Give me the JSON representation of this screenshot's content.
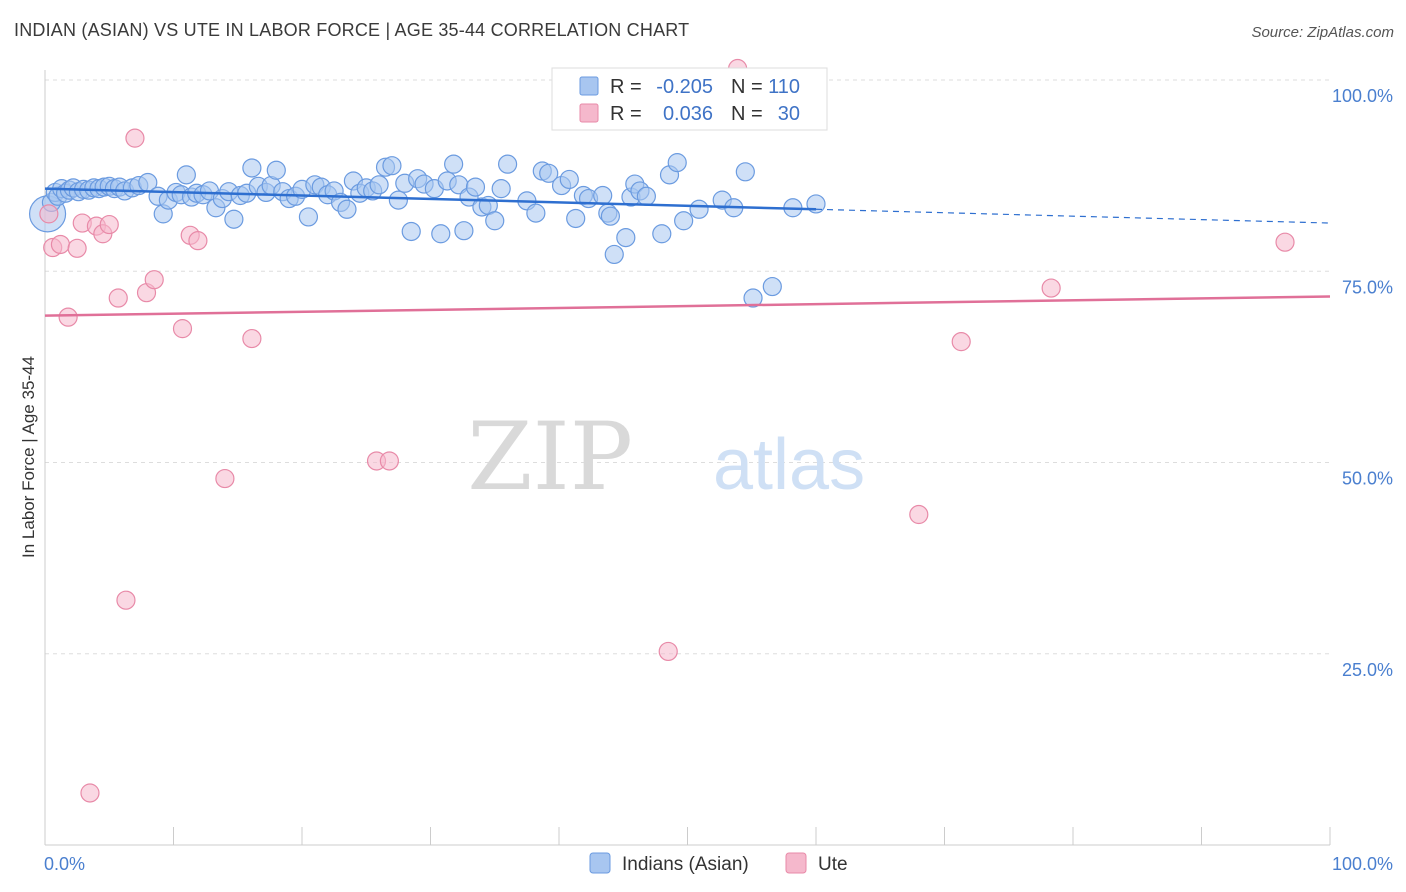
{
  "header": {
    "title": "INDIAN (ASIAN) VS UTE IN LABOR FORCE | AGE 35-44 CORRELATION CHART",
    "source": "Source: ZipAtlas.com"
  },
  "colors": {
    "blue_fill": "#a8c6f0",
    "blue_stroke": "#6b9be0",
    "blue_line": "#2e6fd0",
    "pink_fill": "#f5b8cc",
    "pink_stroke": "#e88aa8",
    "pink_line": "#e07098",
    "grid": "#dddddd",
    "tick_text": "#4a7fcf"
  },
  "chart_data": {
    "type": "scatter",
    "title": "INDIAN (ASIAN) VS UTE IN LABOR FORCE | AGE 35-44 CORRELATION CHART",
    "xlabel": "",
    "ylabel": "In Labor Force | Age 35-44",
    "xlim": [
      0,
      100
    ],
    "ylim": [
      0,
      102
    ],
    "x_tick_labels": [
      "0.0%",
      "100.0%"
    ],
    "y_ticks": [
      25,
      50,
      75,
      100
    ],
    "y_tick_labels": [
      "25.0%",
      "50.0%",
      "75.0%",
      "100.0%"
    ],
    "watermark": {
      "part1": "ZIP",
      "part2": "atlas"
    },
    "legend": [
      {
        "r_label": "R =",
        "r_value": "-0.205",
        "n_label": "N =",
        "n_value": "110"
      },
      {
        "r_label": "R =",
        "r_value": "0.036",
        "n_label": "N =",
        "n_value": "30"
      }
    ],
    "series": [
      {
        "name": "Indians (Asian)",
        "color": "#a8c6f0",
        "trend": {
          "x0": 0,
          "y0": 85.8,
          "x1": 60,
          "y1": 83.1,
          "dash_x1": 100,
          "dash_y1": 81.3
        },
        "points": [
          [
            0.2,
            82.5
          ],
          [
            0.5,
            84.0
          ],
          [
            0.8,
            85.3
          ],
          [
            1.0,
            84.8
          ],
          [
            1.3,
            85.8
          ],
          [
            1.6,
            85.2
          ],
          [
            1.9,
            85.6
          ],
          [
            2.2,
            85.9
          ],
          [
            2.6,
            85.4
          ],
          [
            3.0,
            85.7
          ],
          [
            3.4,
            85.6
          ],
          [
            3.8,
            85.9
          ],
          [
            4.2,
            85.8
          ],
          [
            4.6,
            86.0
          ],
          [
            5.0,
            86.1
          ],
          [
            5.4,
            85.8
          ],
          [
            5.8,
            86.0
          ],
          [
            6.2,
            85.5
          ],
          [
            6.8,
            85.9
          ],
          [
            7.3,
            86.2
          ],
          [
            8.0,
            86.6
          ],
          [
            8.8,
            84.8
          ],
          [
            9.2,
            82.5
          ],
          [
            9.6,
            84.3
          ],
          [
            10.2,
            85.3
          ],
          [
            10.6,
            85.0
          ],
          [
            11.0,
            87.6
          ],
          [
            11.4,
            84.7
          ],
          [
            11.8,
            85.2
          ],
          [
            12.3,
            85.0
          ],
          [
            12.8,
            85.5
          ],
          [
            13.3,
            83.3
          ],
          [
            13.8,
            84.5
          ],
          [
            14.3,
            85.4
          ],
          [
            14.7,
            81.8
          ],
          [
            15.2,
            84.9
          ],
          [
            15.7,
            85.2
          ],
          [
            16.1,
            88.5
          ],
          [
            16.6,
            86.1
          ],
          [
            17.2,
            85.3
          ],
          [
            17.6,
            86.2
          ],
          [
            18.0,
            88.2
          ],
          [
            18.5,
            85.4
          ],
          [
            19.0,
            84.5
          ],
          [
            19.5,
            84.8
          ],
          [
            20.0,
            85.7
          ],
          [
            20.5,
            82.1
          ],
          [
            21.0,
            86.3
          ],
          [
            21.5,
            86.0
          ],
          [
            22.0,
            85.0
          ],
          [
            22.5,
            85.5
          ],
          [
            23.0,
            84.0
          ],
          [
            23.5,
            83.1
          ],
          [
            24.0,
            86.8
          ],
          [
            24.5,
            85.2
          ],
          [
            25.0,
            85.9
          ],
          [
            25.5,
            85.5
          ],
          [
            26.0,
            86.3
          ],
          [
            26.5,
            88.6
          ],
          [
            27.0,
            88.8
          ],
          [
            27.5,
            84.3
          ],
          [
            28.0,
            86.5
          ],
          [
            28.5,
            80.2
          ],
          [
            29.0,
            87.1
          ],
          [
            29.5,
            86.4
          ],
          [
            30.3,
            85.8
          ],
          [
            30.8,
            79.9
          ],
          [
            31.3,
            86.8
          ],
          [
            31.8,
            89.0
          ],
          [
            32.2,
            86.3
          ],
          [
            32.6,
            80.3
          ],
          [
            33.0,
            84.7
          ],
          [
            33.5,
            86.0
          ],
          [
            34.0,
            83.4
          ],
          [
            34.5,
            83.6
          ],
          [
            35.0,
            81.6
          ],
          [
            35.5,
            85.8
          ],
          [
            36.0,
            89.0
          ],
          [
            37.5,
            84.2
          ],
          [
            38.2,
            82.6
          ],
          [
            38.7,
            88.1
          ],
          [
            39.2,
            87.8
          ],
          [
            40.2,
            86.2
          ],
          [
            40.8,
            87.0
          ],
          [
            41.3,
            81.9
          ],
          [
            41.9,
            84.9
          ],
          [
            42.3,
            84.5
          ],
          [
            43.4,
            84.9
          ],
          [
            43.8,
            82.6
          ],
          [
            44.0,
            82.2
          ],
          [
            44.3,
            77.2
          ],
          [
            45.2,
            79.4
          ],
          [
            45.6,
            84.7
          ],
          [
            45.9,
            86.4
          ],
          [
            46.3,
            85.5
          ],
          [
            46.8,
            84.8
          ],
          [
            48.0,
            79.9
          ],
          [
            48.6,
            87.6
          ],
          [
            49.2,
            89.2
          ],
          [
            49.7,
            81.6
          ],
          [
            50.9,
            83.1
          ],
          [
            52.7,
            84.3
          ],
          [
            53.6,
            83.3
          ],
          [
            54.5,
            88.0
          ],
          [
            55.1,
            71.5
          ],
          [
            56.6,
            73.0
          ],
          [
            58.2,
            83.3
          ],
          [
            60.0,
            83.8
          ]
        ]
      },
      {
        "name": "Ute",
        "color": "#f5b8cc",
        "trend": {
          "x0": 0,
          "y0": 69.2,
          "x1": 100,
          "y1": 71.7
        },
        "points": [
          [
            0.3,
            82.5
          ],
          [
            0.6,
            78.1
          ],
          [
            1.2,
            78.5
          ],
          [
            1.8,
            69.0
          ],
          [
            2.5,
            78.0
          ],
          [
            2.9,
            81.3
          ],
          [
            3.5,
            6.8
          ],
          [
            4.0,
            80.9
          ],
          [
            4.5,
            79.9
          ],
          [
            5.0,
            81.1
          ],
          [
            5.7,
            71.5
          ],
          [
            6.3,
            32.0
          ],
          [
            7.0,
            92.4
          ],
          [
            7.9,
            72.2
          ],
          [
            8.5,
            73.9
          ],
          [
            10.7,
            67.5
          ],
          [
            11.3,
            79.7
          ],
          [
            11.9,
            79.0
          ],
          [
            14.0,
            47.9
          ],
          [
            16.1,
            66.2
          ],
          [
            25.8,
            50.2
          ],
          [
            26.8,
            50.2
          ],
          [
            48.5,
            25.3
          ],
          [
            53.9,
            101.5
          ],
          [
            68.0,
            43.2
          ],
          [
            71.3,
            65.8
          ],
          [
            78.3,
            72.8
          ],
          [
            96.5,
            78.8
          ]
        ]
      }
    ]
  }
}
